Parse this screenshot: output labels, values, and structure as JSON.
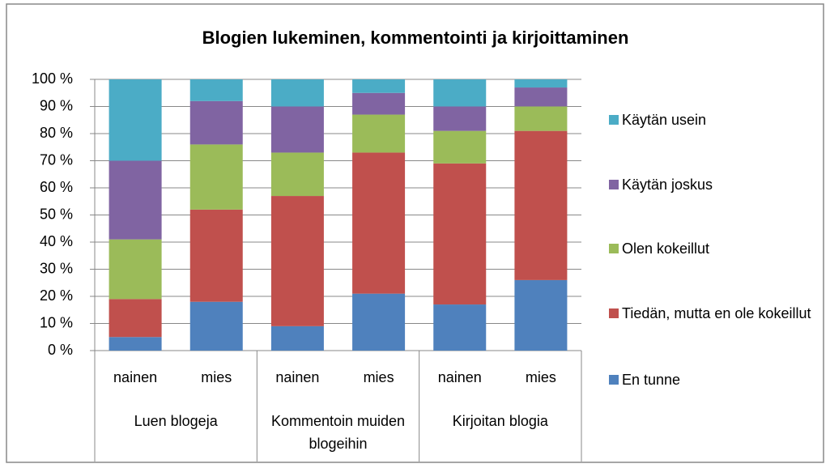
{
  "chart_data": {
    "type": "stacked_bar",
    "title": "Blogien lukeminen, kommentointi ja kirjoittaminen",
    "groups": [
      {
        "name": "Luen blogeja",
        "categories": [
          "nainen",
          "mies"
        ]
      },
      {
        "name": "Kommentoin muiden blogeihin",
        "categories": [
          "nainen",
          "mies"
        ]
      },
      {
        "name": "Kirjoitan blogia",
        "categories": [
          "nainen",
          "mies"
        ]
      }
    ],
    "series": [
      {
        "name": "En tunne",
        "color": "#4f81bd",
        "values": [
          5,
          18,
          9,
          21,
          17,
          26
        ]
      },
      {
        "name": "Tiedän, mutta en ole kokeillut",
        "color": "#c0504d",
        "values": [
          14,
          34,
          48,
          52,
          52,
          55
        ]
      },
      {
        "name": "Olen kokeillut",
        "color": "#9bbb59",
        "values": [
          22,
          24,
          16,
          14,
          12,
          9
        ]
      },
      {
        "name": "Käytän joskus",
        "color": "#8064a2",
        "values": [
          29,
          16,
          17,
          8,
          9,
          7
        ]
      },
      {
        "name": "Käytän usein",
        "color": "#4bacc6",
        "values": [
          30,
          8,
          10,
          5,
          10,
          3
        ]
      }
    ],
    "ylim": [
      0,
      100
    ],
    "yticks": [
      {
        "value": 0,
        "label": "0 %"
      },
      {
        "value": 10,
        "label": "10 %"
      },
      {
        "value": 20,
        "label": "20 %"
      },
      {
        "value": 30,
        "label": "30 %"
      },
      {
        "value": 40,
        "label": "40 %"
      },
      {
        "value": 50,
        "label": "50 %"
      },
      {
        "value": 60,
        "label": "60 %"
      },
      {
        "value": 70,
        "label": "70 %"
      },
      {
        "value": 80,
        "label": "80 %"
      },
      {
        "value": 90,
        "label": "90 %"
      },
      {
        "value": 100,
        "label": "100 %"
      }
    ],
    "grid": true,
    "legend": "right"
  }
}
